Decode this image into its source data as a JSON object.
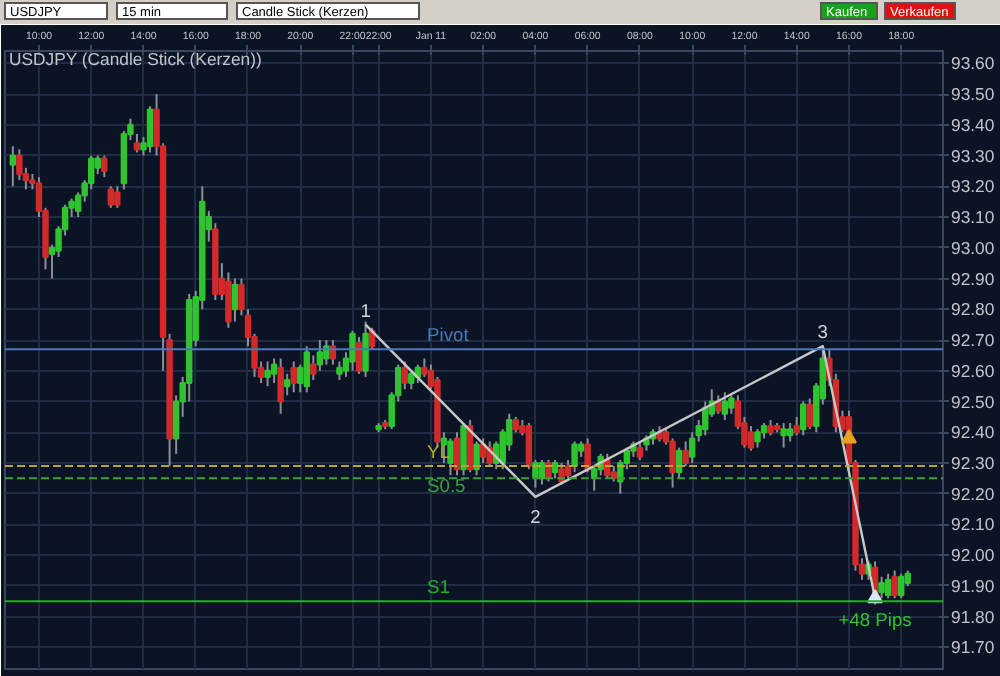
{
  "chart_data": {
    "type": "candlestick",
    "title": "USDJPY (Candle Stick (Kerzen))",
    "annotations": [
      "USDJPY",
      "15 min",
      "Candle Stick (Kerzen)",
      "Kaufen",
      "Verkaufen",
      "1",
      "2",
      "3",
      "+48 Pips"
    ],
    "categories": [
      null,
      null,
      null,
      null,
      "10:00",
      null,
      null,
      null,
      null,
      null,
      null,
      null,
      "12:00",
      null,
      null,
      null,
      null,
      null,
      null,
      null,
      "14:00",
      null,
      null,
      null,
      null,
      null,
      null,
      null,
      "16:00",
      null,
      null,
      null,
      null,
      null,
      null,
      null,
      "18:00",
      null,
      null,
      null,
      null,
      null,
      null,
      null,
      "20:00",
      null,
      null,
      null,
      null,
      null,
      null,
      null,
      "22:00",
      null,
      null,
      null,
      "22:00",
      null,
      null,
      null,
      null,
      null,
      null,
      null,
      "Jan 11",
      null,
      null,
      null,
      null,
      null,
      null,
      null,
      "02:00",
      null,
      null,
      null,
      null,
      null,
      null,
      null,
      "04:00",
      null,
      null,
      null,
      null,
      null,
      null,
      null,
      "06:00",
      null,
      null,
      null,
      null,
      null,
      null,
      null,
      "08:00",
      null,
      null,
      null,
      null,
      null,
      null,
      null,
      "10:00",
      null,
      null,
      null,
      null,
      null,
      null,
      null,
      "12:00",
      null,
      null,
      null,
      null,
      null,
      null,
      null,
      "14:00",
      null,
      null,
      null,
      null,
      null,
      null,
      null,
      "16:00",
      null,
      null,
      null,
      null,
      null,
      null,
      null,
      "18:00",
      null
    ],
    "ohlc": [
      [
        93.27,
        93.33,
        93.2,
        93.3
      ],
      [
        93.3,
        93.32,
        93.22,
        93.24
      ],
      [
        93.24,
        93.26,
        93.19,
        93.22
      ],
      [
        93.22,
        93.24,
        93.19,
        93.21
      ],
      [
        93.21,
        93.23,
        93.1,
        93.12
      ],
      [
        93.12,
        93.13,
        92.93,
        92.97
      ],
      [
        92.98,
        93.01,
        92.9,
        93.0
      ],
      [
        92.99,
        93.07,
        92.97,
        93.06
      ],
      [
        93.06,
        93.14,
        93.04,
        93.13
      ],
      [
        93.13,
        93.16,
        93.1,
        93.15
      ],
      [
        93.12,
        93.18,
        93.1,
        93.17
      ],
      [
        93.17,
        93.22,
        93.15,
        93.21
      ],
      [
        93.21,
        93.3,
        93.19,
        93.29
      ],
      [
        93.26,
        93.3,
        93.24,
        93.29
      ],
      [
        93.29,
        93.3,
        93.23,
        93.25
      ],
      [
        93.19,
        93.2,
        93.13,
        93.14
      ],
      [
        93.18,
        93.2,
        93.13,
        93.14
      ],
      [
        93.21,
        93.38,
        93.19,
        93.37
      ],
      [
        93.37,
        93.42,
        93.35,
        93.4
      ],
      [
        93.34,
        93.37,
        93.31,
        93.32
      ],
      [
        93.32,
        93.36,
        93.3,
        93.34
      ],
      [
        93.33,
        93.46,
        93.31,
        93.45
      ],
      [
        93.45,
        93.5,
        93.3,
        93.33
      ],
      [
        93.33,
        93.34,
        92.6,
        92.71
      ],
      [
        92.7,
        92.72,
        92.29,
        92.38
      ],
      [
        92.38,
        92.52,
        92.33,
        92.5
      ],
      [
        92.5,
        92.58,
        92.45,
        92.56
      ],
      [
        92.56,
        92.85,
        92.5,
        92.83
      ],
      [
        92.7,
        92.86,
        92.68,
        92.84
      ],
      [
        92.83,
        93.2,
        92.8,
        93.15
      ],
      [
        93.06,
        93.12,
        93.02,
        93.1
      ],
      [
        93.06,
        93.08,
        92.83,
        92.85
      ],
      [
        92.9,
        92.95,
        92.83,
        92.85
      ],
      [
        92.89,
        92.92,
        92.74,
        92.76
      ],
      [
        92.8,
        92.9,
        92.76,
        92.88
      ],
      [
        92.88,
        92.9,
        92.78,
        92.8
      ],
      [
        92.78,
        92.8,
        92.68,
        92.71
      ],
      [
        92.71,
        92.72,
        92.58,
        92.61
      ],
      [
        92.61,
        92.63,
        92.56,
        92.58
      ],
      [
        92.58,
        92.63,
        92.55,
        92.6
      ],
      [
        92.59,
        92.64,
        92.56,
        92.62
      ],
      [
        92.61,
        92.64,
        92.46,
        92.5
      ],
      [
        92.55,
        92.59,
        92.52,
        92.57
      ],
      [
        92.61,
        92.63,
        92.53,
        92.56
      ],
      [
        92.56,
        92.62,
        92.53,
        92.61
      ],
      [
        92.55,
        92.68,
        92.53,
        92.66
      ],
      [
        92.62,
        92.65,
        92.57,
        92.59
      ],
      [
        92.62,
        92.7,
        92.6,
        92.66
      ],
      [
        92.64,
        92.7,
        92.62,
        92.68
      ],
      [
        92.68,
        92.7,
        92.62,
        92.64
      ],
      [
        92.59,
        92.63,
        92.57,
        92.61
      ],
      [
        92.6,
        92.66,
        92.58,
        92.64
      ],
      [
        92.63,
        92.73,
        92.6,
        92.72
      ],
      [
        92.69,
        92.71,
        92.59,
        92.6
      ],
      [
        92.6,
        92.76,
        92.58,
        92.72
      ],
      [
        92.73,
        92.74,
        92.67,
        92.68
      ],
      [
        92.41,
        92.43,
        92.4,
        92.42
      ],
      [
        92.43,
        92.44,
        92.41,
        92.42
      ],
      [
        92.42,
        92.53,
        92.41,
        92.52
      ],
      [
        92.52,
        92.62,
        92.5,
        92.61
      ],
      [
        92.61,
        92.63,
        92.54,
        92.56
      ],
      [
        92.56,
        92.6,
        92.54,
        92.59
      ],
      [
        92.58,
        92.62,
        92.56,
        92.61
      ],
      [
        92.61,
        92.64,
        92.58,
        92.59
      ],
      [
        92.6,
        92.62,
        92.54,
        92.55
      ],
      [
        92.57,
        92.58,
        92.35,
        92.37
      ],
      [
        92.36,
        92.4,
        92.3,
        92.38
      ],
      [
        92.3,
        92.38,
        92.26,
        92.37
      ],
      [
        92.38,
        92.4,
        92.26,
        92.28
      ],
      [
        92.28,
        92.43,
        92.26,
        92.42
      ],
      [
        92.42,
        92.44,
        92.27,
        92.28
      ],
      [
        92.28,
        92.37,
        92.26,
        92.36
      ],
      [
        92.36,
        92.38,
        92.3,
        92.32
      ],
      [
        92.35,
        92.37,
        92.29,
        92.3
      ],
      [
        92.3,
        92.37,
        92.28,
        92.36
      ],
      [
        92.3,
        92.41,
        92.28,
        92.4
      ],
      [
        92.36,
        92.46,
        92.34,
        92.44
      ],
      [
        92.44,
        92.45,
        92.4,
        92.41
      ],
      [
        92.42,
        92.44,
        92.39,
        92.4
      ],
      [
        92.42,
        92.43,
        92.28,
        92.29
      ],
      [
        92.25,
        92.31,
        92.22,
        92.3
      ],
      [
        92.25,
        92.31,
        92.23,
        92.3
      ],
      [
        92.3,
        92.31,
        92.24,
        92.25
      ],
      [
        92.27,
        92.31,
        92.25,
        92.3
      ],
      [
        92.28,
        92.3,
        92.23,
        92.24
      ],
      [
        92.29,
        92.31,
        92.25,
        92.26
      ],
      [
        92.29,
        92.37,
        92.27,
        92.36
      ],
      [
        92.34,
        92.37,
        92.32,
        92.36
      ],
      [
        92.36,
        92.38,
        92.27,
        92.28
      ],
      [
        92.25,
        92.29,
        92.21,
        92.28
      ],
      [
        92.28,
        92.33,
        92.26,
        92.32
      ],
      [
        92.31,
        92.33,
        92.25,
        92.26
      ],
      [
        92.27,
        92.29,
        92.24,
        92.25
      ],
      [
        92.24,
        92.31,
        92.2,
        92.3
      ],
      [
        92.3,
        92.35,
        92.28,
        92.34
      ],
      [
        92.34,
        92.37,
        92.32,
        92.36
      ],
      [
        92.35,
        92.37,
        92.31,
        92.32
      ],
      [
        92.36,
        92.39,
        92.34,
        92.38
      ],
      [
        92.38,
        92.41,
        92.36,
        92.4
      ],
      [
        92.4,
        92.42,
        92.37,
        92.38
      ],
      [
        92.4,
        92.41,
        92.36,
        92.37
      ],
      [
        92.37,
        92.38,
        92.22,
        92.27
      ],
      [
        92.27,
        92.35,
        92.25,
        92.34
      ],
      [
        92.34,
        92.37,
        92.29,
        92.3
      ],
      [
        92.32,
        92.4,
        92.3,
        92.38
      ],
      [
        92.39,
        92.44,
        92.37,
        92.42
      ],
      [
        92.41,
        92.5,
        92.39,
        92.48
      ],
      [
        92.46,
        92.54,
        92.45,
        92.5
      ],
      [
        92.5,
        92.52,
        92.46,
        92.47
      ],
      [
        92.46,
        92.53,
        92.44,
        92.5
      ],
      [
        92.48,
        92.52,
        92.46,
        92.51
      ],
      [
        92.5,
        92.52,
        92.41,
        92.42
      ],
      [
        92.43,
        92.45,
        92.35,
        92.36
      ],
      [
        92.4,
        92.42,
        92.34,
        92.35
      ],
      [
        92.37,
        92.41,
        92.35,
        92.4
      ],
      [
        92.4,
        92.43,
        92.38,
        92.42
      ],
      [
        92.42,
        92.44,
        92.39,
        92.4
      ],
      [
        92.42,
        92.43,
        92.4,
        92.41
      ],
      [
        92.39,
        92.43,
        92.35,
        92.41
      ],
      [
        92.39,
        92.43,
        92.37,
        92.41
      ],
      [
        92.42,
        92.45,
        92.39,
        92.4
      ],
      [
        92.41,
        92.5,
        92.39,
        92.49
      ],
      [
        92.49,
        92.51,
        92.41,
        92.42
      ],
      [
        92.42,
        92.56,
        92.4,
        92.55
      ],
      [
        92.51,
        92.68,
        92.49,
        92.64
      ],
      [
        92.64,
        92.67,
        92.55,
        92.57
      ],
      [
        92.57,
        92.59,
        92.4,
        92.42
      ],
      [
        92.45,
        92.47,
        92.4,
        92.41
      ],
      [
        92.45,
        92.47,
        92.28,
        92.3
      ],
      [
        92.3,
        92.31,
        91.95,
        91.97
      ],
      [
        91.97,
        91.99,
        91.92,
        91.94
      ],
      [
        91.94,
        91.98,
        91.92,
        91.97
      ],
      [
        91.96,
        91.98,
        91.84,
        91.87
      ],
      [
        91.88,
        91.93,
        91.86,
        91.91
      ],
      [
        91.87,
        91.94,
        91.86,
        91.92
      ],
      [
        91.93,
        91.95,
        91.86,
        91.87
      ],
      [
        91.87,
        91.94,
        91.86,
        91.93
      ],
      [
        91.91,
        91.95,
        91.9,
        91.94
      ]
    ],
    "colors": [
      "#2fc42f",
      "#d02a2a",
      "#d02a2a",
      "#d02a2a",
      "#d02a2a",
      "#d02a2a",
      "#2fc42f",
      "#2fc42f",
      "#2fc42f",
      "#2fc42f",
      "#2fc42f",
      "#2fc42f",
      "#2fc42f",
      "#2fc42f",
      "#d02a2a",
      "#d02a2a",
      "#d02a2a",
      "#2fc42f",
      "#2fc42f",
      "#d02a2a",
      "#2fc42f",
      "#2fc42f",
      "#d02a2a",
      "#d02a2a",
      "#d02a2a",
      "#2fc42f",
      "#2fc42f",
      "#2fc42f",
      "#2fc42f",
      "#2fc42f",
      "#2fc42f",
      "#d02a2a",
      "#d02a2a",
      "#d02a2a",
      "#2fc42f",
      "#d02a2a",
      "#d02a2a",
      "#d02a2a",
      "#d02a2a",
      "#2fc42f",
      "#2fc42f",
      "#d02a2a",
      "#2fc42f",
      "#d02a2a",
      "#2fc42f",
      "#2fc42f",
      "#d02a2a",
      "#2fc42f",
      "#2fc42f",
      "#d02a2a",
      "#2fc42f",
      "#2fc42f",
      "#2fc42f",
      "#d02a2a",
      "#2fc42f",
      "#d02a2a",
      "#2fc42f",
      "#d02a2a",
      "#2fc42f",
      "#2fc42f",
      "#d02a2a",
      "#2fc42f",
      "#2fc42f",
      "#d02a2a",
      "#d02a2a",
      "#d02a2a",
      "#2fc42f",
      "#2fc42f",
      "#d02a2a",
      "#2fc42f",
      "#d02a2a",
      "#2fc42f",
      "#d02a2a",
      "#d02a2a",
      "#2fc42f",
      "#2fc42f",
      "#2fc42f",
      "#d02a2a",
      "#d02a2a",
      "#d02a2a",
      "#2fc42f",
      "#2fc42f",
      "#d02a2a",
      "#2fc42f",
      "#d02a2a",
      "#d02a2a",
      "#2fc42f",
      "#2fc42f",
      "#d02a2a",
      "#2fc42f",
      "#2fc42f",
      "#d02a2a",
      "#d02a2a",
      "#2fc42f",
      "#2fc42f",
      "#2fc42f",
      "#d02a2a",
      "#2fc42f",
      "#2fc42f",
      "#d02a2a",
      "#d02a2a",
      "#d02a2a",
      "#2fc42f",
      "#d02a2a",
      "#2fc42f",
      "#2fc42f",
      "#2fc42f",
      "#2fc42f",
      "#d02a2a",
      "#2fc42f",
      "#2fc42f",
      "#d02a2a",
      "#d02a2a",
      "#d02a2a",
      "#2fc42f",
      "#2fc42f",
      "#d02a2a",
      "#d02a2a",
      "#2fc42f",
      "#2fc42f",
      "#d02a2a",
      "#2fc42f",
      "#d02a2a",
      "#2fc42f",
      "#2fc42f",
      "#d02a2a",
      "#d02a2a",
      "#d02a2a",
      "#d02a2a",
      "#d02a2a",
      "#d02a2a",
      "#2fc42f",
      "#d02a2a",
      "#2fc42f",
      "#2fc42f",
      "#d02a2a",
      "#2fc42f",
      "#2fc42f"
    ],
    "series": [
      {
        "type": "line",
        "color": "#c8c8c8",
        "values": [
          null,
          null,
          null,
          null,
          null,
          null,
          null,
          null,
          null,
          null,
          null,
          null,
          null,
          null,
          null,
          null,
          null,
          null,
          null,
          null,
          null,
          null,
          null,
          null,
          null,
          null,
          null,
          null,
          null,
          null,
          null,
          null,
          null,
          null,
          null,
          null,
          null,
          null,
          null,
          null,
          null,
          null,
          null,
          null,
          null,
          null,
          null,
          null,
          null,
          null,
          null,
          null,
          null,
          null,
          92.75,
          null,
          null,
          null,
          null,
          null,
          null,
          null,
          null,
          null,
          null,
          null,
          null,
          null,
          null,
          null,
          null,
          null,
          null,
          null,
          null,
          null,
          null,
          null,
          null,
          null,
          92.19,
          null,
          null,
          null,
          null,
          null,
          null,
          null,
          null,
          null,
          null,
          null,
          null,
          null,
          null,
          null,
          null,
          null,
          null,
          null,
          null,
          null,
          null,
          null,
          null,
          null,
          null,
          null,
          null,
          null,
          null,
          null,
          null,
          null,
          null,
          null,
          null,
          null,
          null,
          null,
          null,
          null,
          null,
          null,
          92.68,
          null,
          null,
          null,
          null,
          null,
          null,
          null,
          91.86,
          null,
          null,
          null,
          null,
          null
        ]
      },
      {
        "type": "scatter",
        "marker": "triangle",
        "color": "#e8a020",
        "values": [
          null,
          null,
          null,
          null,
          null,
          null,
          null,
          null,
          null,
          null,
          null,
          null,
          null,
          null,
          null,
          null,
          null,
          null,
          null,
          null,
          null,
          null,
          null,
          null,
          null,
          null,
          null,
          null,
          null,
          null,
          null,
          null,
          null,
          null,
          null,
          null,
          null,
          null,
          null,
          null,
          null,
          null,
          null,
          null,
          null,
          null,
          null,
          null,
          null,
          null,
          null,
          null,
          null,
          null,
          null,
          null,
          null,
          null,
          null,
          null,
          null,
          null,
          null,
          null,
          null,
          null,
          null,
          null,
          null,
          null,
          null,
          null,
          null,
          null,
          null,
          null,
          null,
          null,
          null,
          null,
          null,
          null,
          null,
          null,
          null,
          null,
          null,
          null,
          null,
          null,
          null,
          null,
          null,
          null,
          null,
          null,
          null,
          null,
          null,
          null,
          null,
          null,
          null,
          null,
          null,
          null,
          null,
          null,
          null,
          null,
          null,
          null,
          null,
          null,
          null,
          null,
          null,
          null,
          null,
          null,
          null,
          null,
          null,
          null,
          null,
          null,
          null,
          null,
          92.38,
          null,
          null,
          null,
          null,
          null,
          null,
          null,
          null,
          null
        ]
      },
      {
        "type": "scatter",
        "marker": "triangle",
        "color": "#d8e8f8",
        "values": [
          null,
          null,
          null,
          null,
          null,
          null,
          null,
          null,
          null,
          null,
          null,
          null,
          null,
          null,
          null,
          null,
          null,
          null,
          null,
          null,
          null,
          null,
          null,
          null,
          null,
          null,
          null,
          null,
          null,
          null,
          null,
          null,
          null,
          null,
          null,
          null,
          null,
          null,
          null,
          null,
          null,
          null,
          null,
          null,
          null,
          null,
          null,
          null,
          null,
          null,
          null,
          null,
          null,
          null,
          null,
          null,
          null,
          null,
          null,
          null,
          null,
          null,
          null,
          null,
          null,
          null,
          null,
          null,
          null,
          null,
          null,
          null,
          null,
          null,
          null,
          null,
          null,
          null,
          null,
          null,
          null,
          null,
          null,
          null,
          null,
          null,
          null,
          null,
          null,
          null,
          null,
          null,
          null,
          null,
          null,
          null,
          null,
          null,
          null,
          null,
          null,
          null,
          null,
          null,
          null,
          null,
          null,
          null,
          null,
          null,
          null,
          null,
          null,
          null,
          null,
          null,
          null,
          null,
          null,
          null,
          null,
          null,
          null,
          null,
          null,
          null,
          null,
          null,
          null,
          null,
          null,
          null,
          91.86,
          null,
          null,
          null,
          null,
          null
        ]
      }
    ],
    "ref_lines": [
      {
        "axis": "y",
        "value": 92.67,
        "label": "Pivot",
        "color": "#4a78b8",
        "line_style": "solid"
      },
      {
        "axis": "y",
        "value": 92.29,
        "label": "YL",
        "color": "#b8a828",
        "line_style": "dashed"
      },
      {
        "axis": "y",
        "value": 92.25,
        "label": "S0.5",
        "color": "#3aa03a",
        "line_style": "dashed"
      },
      {
        "axis": "y",
        "value": 91.85,
        "label": "S1",
        "color": "#22b022",
        "line_style": "solid"
      }
    ],
    "ylim": [
      91.63,
      93.64
    ],
    "yticks": [
      {
        "value": 91.7,
        "label": "91.70"
      },
      {
        "value": 91.8,
        "label": "91.80"
      },
      {
        "value": 91.9,
        "label": "91.90"
      },
      {
        "value": 92.0,
        "label": "92.00"
      },
      {
        "value": 92.1,
        "label": "92.10"
      },
      {
        "value": 92.2,
        "label": "92.20"
      },
      {
        "value": 92.3,
        "label": "92.30"
      },
      {
        "value": 92.4,
        "label": "92.40"
      },
      {
        "value": 92.5,
        "label": "92.50"
      },
      {
        "value": 92.6,
        "label": "92.60"
      },
      {
        "value": 92.7,
        "label": "92.70"
      },
      {
        "value": 92.8,
        "label": "92.80"
      },
      {
        "value": 92.9,
        "label": "92.90"
      },
      {
        "value": 93.0,
        "label": "93.00"
      },
      {
        "value": 93.1,
        "label": "93.10"
      },
      {
        "value": 93.2,
        "label": "93.20"
      },
      {
        "value": 93.3,
        "label": "93.30"
      },
      {
        "value": 93.4,
        "label": "93.40"
      },
      {
        "value": 93.5,
        "label": "93.50"
      },
      {
        "value": 93.6,
        "label": "93.60"
      }
    ],
    "grid": true
  }
}
